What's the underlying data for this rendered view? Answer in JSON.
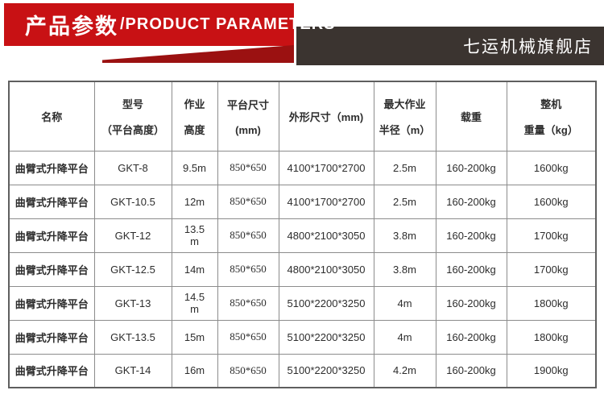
{
  "banner": {
    "title_cn": "产品参数",
    "title_en": "/PRODUCT PARAMETERS",
    "bg_color": "#c81114",
    "shadow_color": "#9b1111",
    "text_color": "#ffffff"
  },
  "store_bar": {
    "name": "七运机械旗舰店",
    "bg_color": "#3b3430",
    "text_color": "#ffffff"
  },
  "table": {
    "headers": [
      {
        "id": "name",
        "lines": [
          "名称"
        ]
      },
      {
        "id": "model",
        "lines": [
          "型号",
          "（平台高度）"
        ]
      },
      {
        "id": "working-height",
        "lines": [
          "作业",
          "高度"
        ]
      },
      {
        "id": "platform-size",
        "lines": [
          "平台尺寸",
          "(mm)"
        ]
      },
      {
        "id": "overall-size",
        "lines": [
          "外形尺寸（mm)"
        ]
      },
      {
        "id": "max-radius",
        "lines": [
          "最大作业",
          "半径（m）"
        ]
      },
      {
        "id": "load",
        "lines": [
          "载重"
        ]
      },
      {
        "id": "weight",
        "lines": [
          "整机",
          "重量（kg）"
        ]
      }
    ],
    "rows": [
      [
        "曲臂式升降平台",
        "GKT-8",
        "9.5m",
        "850*650",
        "4100*1700*2700",
        "2.5m",
        "160-200kg",
        "1600kg"
      ],
      [
        "曲臂式升降平台",
        "GKT-10.5",
        "12m",
        "850*650",
        "4100*1700*2700",
        "2.5m",
        "160-200kg",
        "1600kg"
      ],
      [
        "曲臂式升降平台",
        "GKT-12",
        "13.5\nm",
        "850*650",
        "4800*2100*3050",
        "3.8m",
        "160-200kg",
        "1700kg"
      ],
      [
        "曲臂式升降平台",
        "GKT-12.5",
        "14m",
        "850*650",
        "4800*2100*3050",
        "3.8m",
        "160-200kg",
        "1700kg"
      ],
      [
        "曲臂式升降平台",
        "GKT-13",
        "14.5\nm",
        "850*650",
        "5100*2200*3250",
        "4m",
        "160-200kg",
        "1800kg"
      ],
      [
        "曲臂式升降平台",
        "GKT-13.5",
        "15m",
        "850*650",
        "5100*2200*3250",
        "4m",
        "160-200kg",
        "1800kg"
      ],
      [
        "曲臂式升降平台",
        "GKT-14",
        "16m",
        "850*650",
        "5100*2200*3250",
        "4.2m",
        "160-200kg",
        "1900kg"
      ]
    ],
    "colors": {
      "outer_border": "#5f5f5f",
      "inner_border": "#8c8c8c",
      "text": "#2d2d2d"
    }
  }
}
